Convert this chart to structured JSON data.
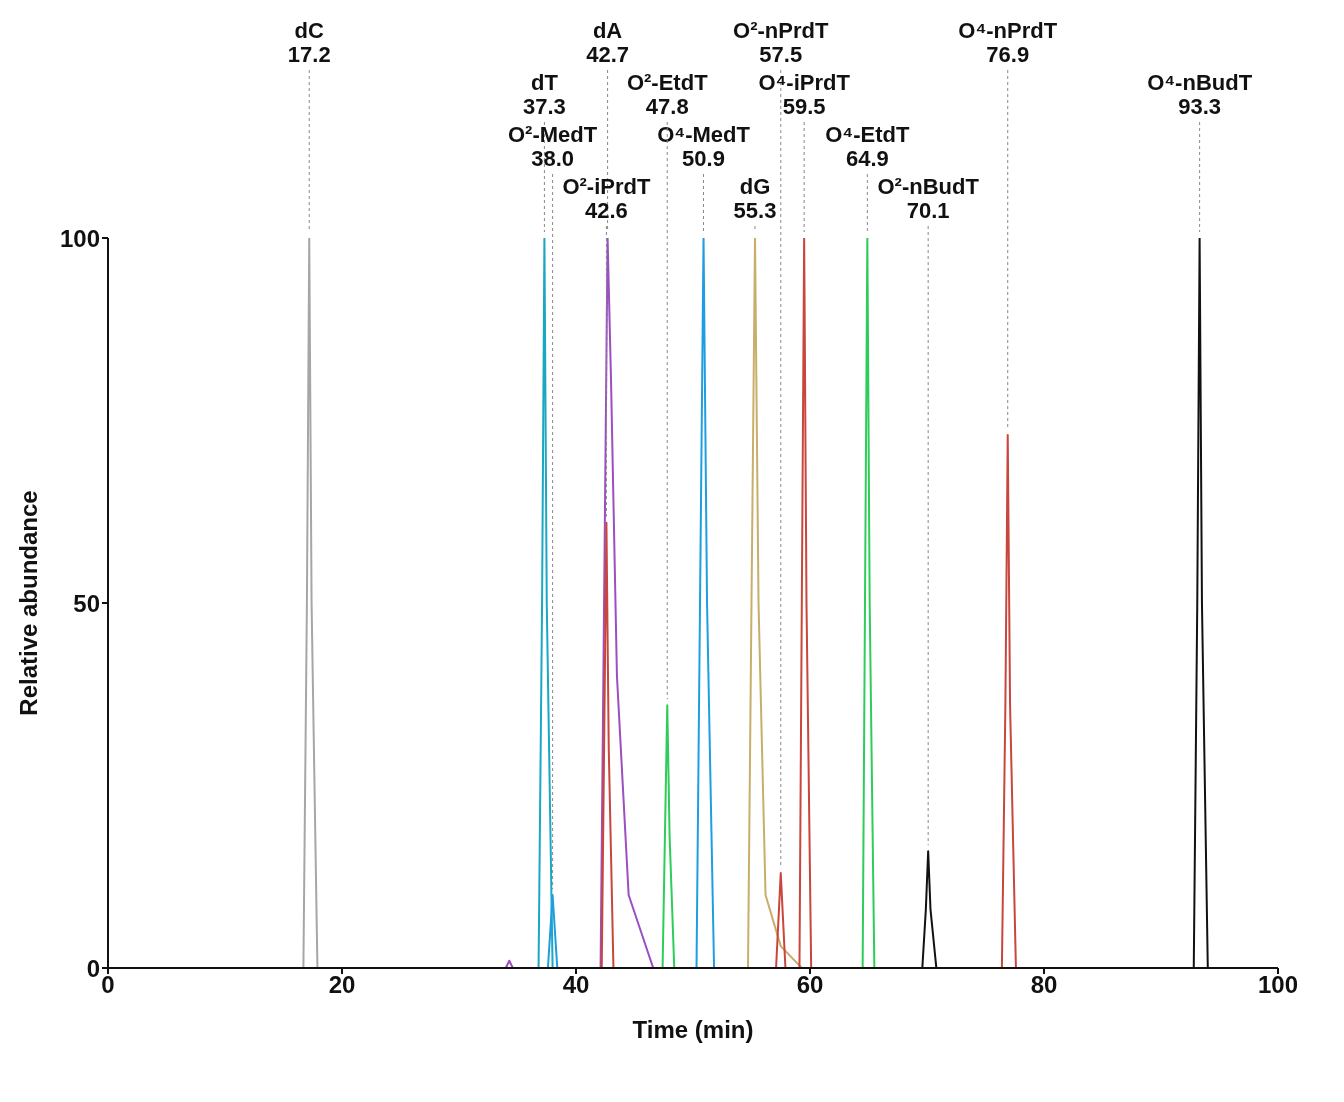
{
  "chart_data": {
    "type": "line",
    "xlabel": "Time (min)",
    "ylabel": "Relative abundance",
    "xlim": [
      0,
      100
    ],
    "xticks": [
      0,
      20,
      40,
      60,
      80,
      100
    ],
    "ylim": [
      0,
      100
    ],
    "yticks": [
      0,
      50,
      100
    ],
    "marker": "none",
    "line_style": "solid",
    "series": [
      {
        "color": "#a6a6a6",
        "x": [
          13.6,
          16.7,
          17.0,
          17.2,
          17.4,
          17.9,
          19.3
        ],
        "values": [
          0,
          0,
          50,
          100,
          50,
          0,
          0
        ]
      },
      {
        "color": "#1aa7c0",
        "x": [
          35.0,
          36.8,
          37.1,
          37.3,
          37.5,
          38.0,
          41.3
        ],
        "values": [
          0,
          0,
          50,
          100,
          50,
          0,
          0
        ]
      },
      {
        "color": "#9b4fc0",
        "x": [
          31.4,
          34.0,
          34.3,
          34.6,
          42.1,
          42.4,
          42.7,
          43.0,
          43.5,
          44.5,
          46.6
        ],
        "values": [
          0,
          0,
          1,
          0,
          0,
          50,
          100,
          80,
          40,
          10,
          0
        ]
      },
      {
        "color": "#c9ad6a",
        "x": [
          43.4,
          54.7,
          55.0,
          55.3,
          55.6,
          56.2,
          57.5,
          59.3
        ],
        "values": [
          0,
          0,
          50,
          100,
          50,
          10,
          3,
          0
        ]
      },
      {
        "color": "#1e9ee0",
        "x": [
          35.3,
          37.6,
          38.0,
          38.4,
          50.3,
          50.6,
          50.9,
          51.2,
          51.8,
          54.3
        ],
        "values": [
          0,
          0,
          10,
          0,
          0,
          50,
          100,
          50,
          0,
          0
        ]
      },
      {
        "color": "#2ecc5a",
        "x": [
          43.7,
          47.4,
          47.6,
          47.8,
          48.0,
          48.4,
          64.5,
          64.7,
          64.9,
          65.1,
          65.5,
          82.0
        ],
        "values": [
          0,
          0,
          18,
          36,
          18,
          0,
          0,
          50,
          100,
          50,
          0,
          0
        ]
      },
      {
        "color": "#c8463c",
        "x": [
          39.6,
          42.2,
          42.4,
          42.6,
          42.8,
          43.2,
          57.1,
          57.5,
          57.9,
          59.1,
          59.3,
          59.5,
          59.7,
          60.1,
          76.4,
          76.7,
          76.9,
          77.1,
          77.6,
          81.9
        ],
        "values": [
          0,
          0,
          30,
          61,
          30,
          0,
          0,
          13,
          0,
          0,
          50,
          100,
          50,
          0,
          0,
          36,
          73,
          36,
          0,
          0
        ]
      },
      {
        "color": "#111111",
        "x": [
          67.7,
          69.6,
          69.9,
          70.1,
          70.3,
          70.8,
          92.8,
          93.1,
          93.3,
          93.5,
          94.0,
          98.9
        ],
        "values": [
          0,
          0,
          8,
          16,
          8,
          0,
          0,
          50,
          100,
          50,
          0,
          0
        ]
      }
    ],
    "annotations": [
      {
        "text": "dC\n17.2",
        "x": 17.2,
        "y": 100
      },
      {
        "text": "dT\n37.3",
        "x": 37.3,
        "y": 100
      },
      {
        "text": "dA\n42.7",
        "x": 42.7,
        "y": 100
      },
      {
        "text": "dG\n55.3",
        "x": 55.3,
        "y": 100
      },
      {
        "text": "O²-MedT\n38.0",
        "x": 38.0,
        "y": 10
      },
      {
        "text": "O⁴-MedT\n50.9",
        "x": 50.9,
        "y": 100
      },
      {
        "text": "O²-EtdT\n47.8",
        "x": 47.8,
        "y": 36
      },
      {
        "text": "O⁴-EtdT\n64.9",
        "x": 64.9,
        "y": 100
      },
      {
        "text": "O²-iPrdT\n42.6",
        "x": 42.6,
        "y": 61
      },
      {
        "text": "O²-nPrdT\n57.5",
        "x": 57.5,
        "y": 13
      },
      {
        "text": "O⁴-iPrdT\n59.5",
        "x": 59.5,
        "y": 100
      },
      {
        "text": "O⁴-nPrdT\n76.9",
        "x": 76.9,
        "y": 73
      },
      {
        "text": "O²-nBudT\n70.1",
        "x": 70.1,
        "y": 16
      },
      {
        "text": "O⁴-nBudT\n93.3",
        "x": 93.3,
        "y": 100
      }
    ]
  }
}
